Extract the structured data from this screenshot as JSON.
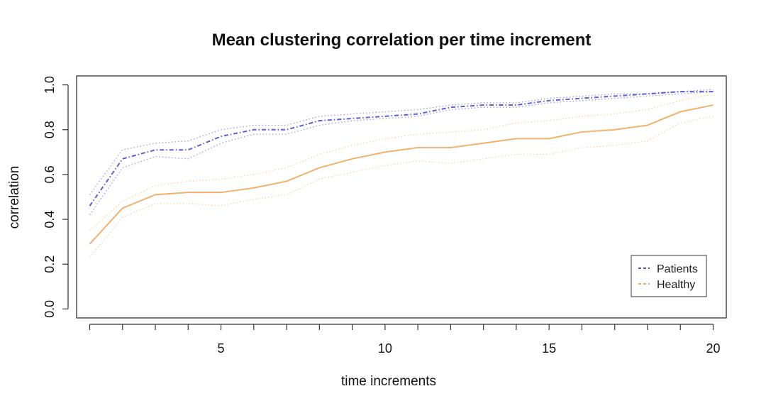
{
  "chart_data": {
    "type": "line",
    "title": "Mean clustering correlation per time increment",
    "xlabel": "time increments",
    "ylabel": "correlation",
    "xlim": [
      0.6,
      20.4
    ],
    "ylim": [
      -0.04,
      1.04
    ],
    "xticks": [
      5,
      10,
      15,
      20
    ],
    "yticks": [
      0.0,
      0.2,
      0.4,
      0.6,
      0.8,
      1.0
    ],
    "ytick_labels": [
      "0.0",
      "0.2",
      "0.4",
      "0.6",
      "0.8",
      "1.0"
    ],
    "xtick_labels": [
      "5",
      "10",
      "15",
      "20"
    ],
    "grid": false,
    "legend_position": "bottom-right",
    "x": [
      1,
      2,
      3,
      4,
      5,
      6,
      7,
      8,
      9,
      10,
      11,
      12,
      13,
      14,
      15,
      16,
      17,
      18,
      19,
      20
    ],
    "series": [
      {
        "name": "Patients",
        "color": "#4a4fd0",
        "values": [
          0.46,
          0.67,
          0.71,
          0.71,
          0.77,
          0.8,
          0.8,
          0.84,
          0.85,
          0.86,
          0.87,
          0.9,
          0.91,
          0.91,
          0.93,
          0.94,
          0.95,
          0.96,
          0.97,
          0.97
        ],
        "upper": [
          0.51,
          0.71,
          0.74,
          0.75,
          0.8,
          0.82,
          0.82,
          0.86,
          0.87,
          0.88,
          0.89,
          0.91,
          0.92,
          0.92,
          0.94,
          0.95,
          0.96,
          0.96,
          0.97,
          0.98
        ],
        "lower": [
          0.42,
          0.63,
          0.68,
          0.67,
          0.74,
          0.78,
          0.78,
          0.82,
          0.84,
          0.85,
          0.86,
          0.89,
          0.9,
          0.9,
          0.92,
          0.93,
          0.94,
          0.95,
          0.96,
          0.97
        ]
      },
      {
        "name": "Healthy",
        "color": "#f0a860",
        "values": [
          0.29,
          0.45,
          0.51,
          0.52,
          0.52,
          0.54,
          0.57,
          0.63,
          0.67,
          0.7,
          0.72,
          0.72,
          0.74,
          0.76,
          0.76,
          0.79,
          0.8,
          0.82,
          0.88,
          0.91
        ],
        "upper": [
          0.35,
          0.48,
          0.55,
          0.57,
          0.58,
          0.6,
          0.63,
          0.69,
          0.73,
          0.76,
          0.78,
          0.79,
          0.8,
          0.83,
          0.84,
          0.86,
          0.87,
          0.89,
          0.93,
          0.96
        ],
        "lower": [
          0.23,
          0.41,
          0.47,
          0.47,
          0.46,
          0.49,
          0.51,
          0.58,
          0.61,
          0.64,
          0.66,
          0.65,
          0.67,
          0.69,
          0.69,
          0.72,
          0.73,
          0.75,
          0.83,
          0.86
        ]
      }
    ]
  }
}
